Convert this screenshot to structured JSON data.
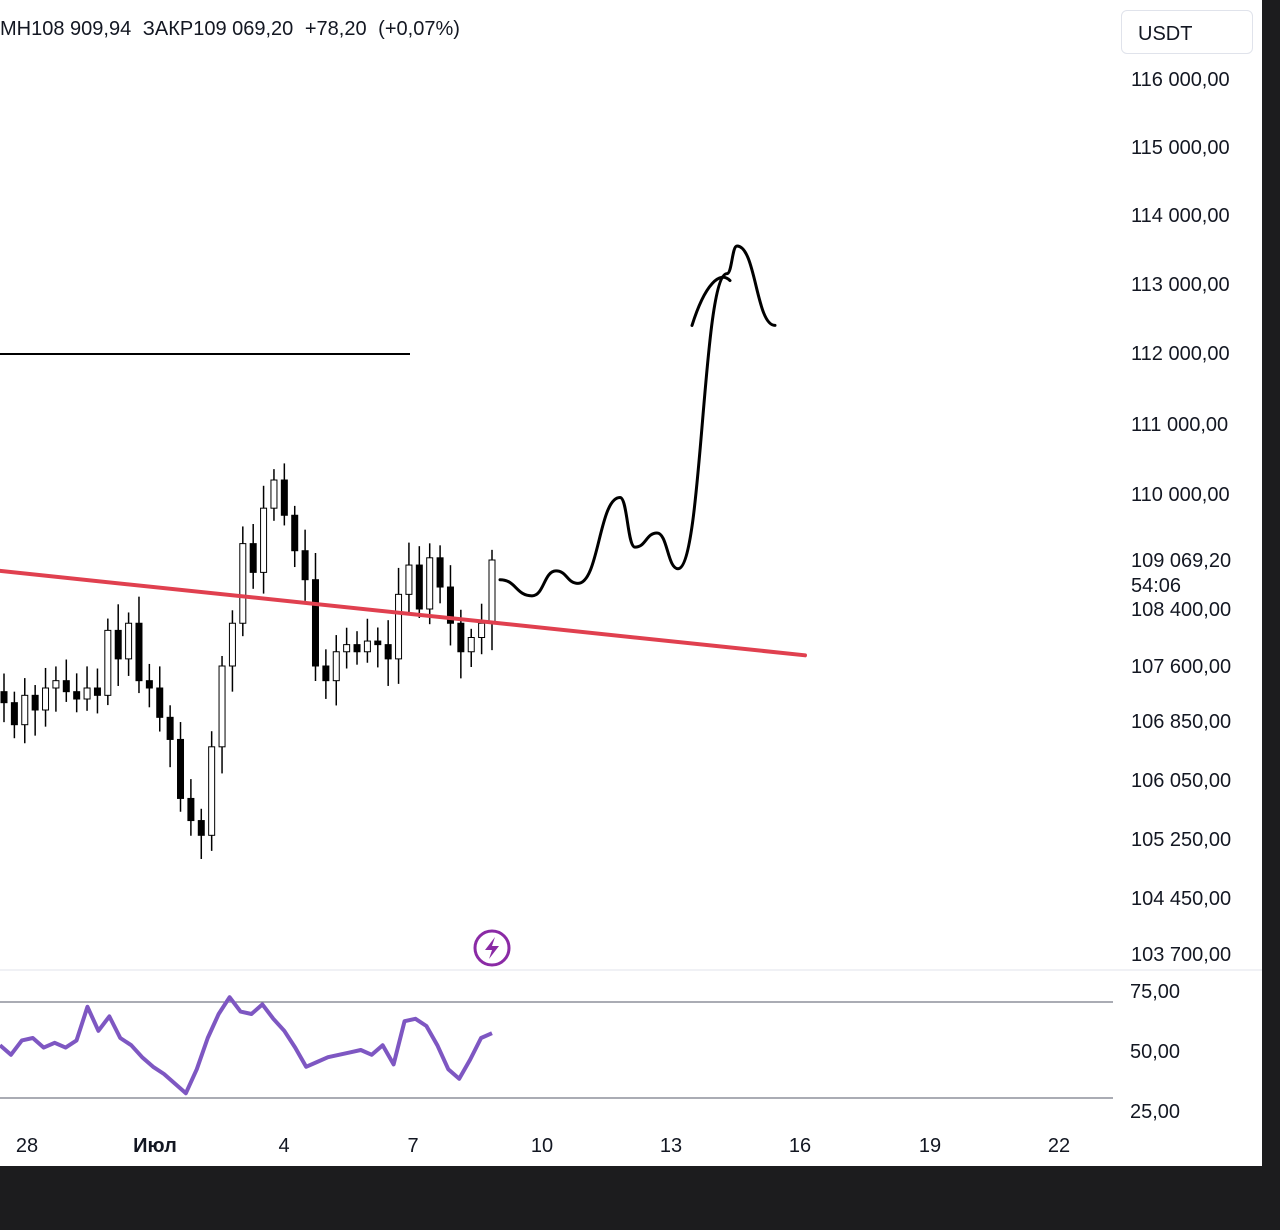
{
  "header": {
    "min_label": "МН",
    "min_value": "108 909,94",
    "close_label": "ЗАКР",
    "close_value": "109 069,20",
    "change": "+78,20",
    "change_pct": "(+0,07%)"
  },
  "currency": "USDT",
  "colors": {
    "candles": "#000000",
    "trendline": "#e0404f",
    "rsi": "#7e57c2",
    "badge_icon": "#8a2aa5",
    "drawing": "#000000"
  },
  "chart_data": [
    {
      "type": "candlestick",
      "title": "",
      "ylim": [
        103700,
        116000
      ],
      "price_ticks": [
        "116 000,00",
        "115 000,00",
        "114 000,00",
        "113 000,00",
        "112 000,00",
        "111 000,00",
        "110 000,00",
        "108 400,00",
        "107 600,00",
        "106 850,00",
        "106 050,00",
        "105 250,00",
        "104 450,00",
        "103 700,00"
      ],
      "last_price": "109 069,20",
      "countdown": "54:06",
      "x_ticks": [
        "28",
        "Июл",
        "4",
        "7",
        "10",
        "13",
        "16",
        "19",
        "22"
      ],
      "candle_path": [
        107100,
        106800,
        107200,
        107000,
        107300,
        107400,
        107250,
        107150,
        107300,
        107200,
        108100,
        107700,
        108200,
        107400,
        107300,
        106900,
        106600,
        105800,
        105500,
        105300,
        106500,
        107600,
        108200,
        109300,
        108900,
        109800,
        110200,
        109700,
        109200,
        108800,
        107600,
        107400,
        107800,
        107900,
        107800,
        107950,
        107900,
        107700,
        108600,
        109000,
        108400,
        109100,
        108700,
        108200,
        107800,
        108000,
        108200,
        109069
      ],
      "trendline": {
        "start": 108920,
        "end": 107750,
        "color": "#e0404f"
      },
      "horizontal_line": 112000,
      "forecast_drawing": [
        108800,
        108580,
        108920,
        108750,
        109950,
        109250,
        109450,
        108950,
        113150,
        113550,
        112400
      ]
    },
    {
      "type": "line",
      "title": "",
      "ylim": [
        25,
        80
      ],
      "y_ticks": [
        "75,00",
        "50,00",
        "25,00"
      ],
      "levels": [
        70,
        30
      ],
      "series": [
        {
          "values": [
            52,
            48,
            54,
            55,
            51,
            53,
            51,
            54,
            68,
            58,
            64,
            55,
            52,
            47,
            43,
            40,
            36,
            32,
            42,
            55,
            65,
            72,
            66,
            65,
            69,
            63,
            58,
            51,
            43,
            45,
            47,
            48,
            49,
            50,
            48,
            52,
            44,
            62,
            63,
            60,
            52,
            42,
            38,
            46,
            55,
            57
          ]
        }
      ]
    }
  ]
}
